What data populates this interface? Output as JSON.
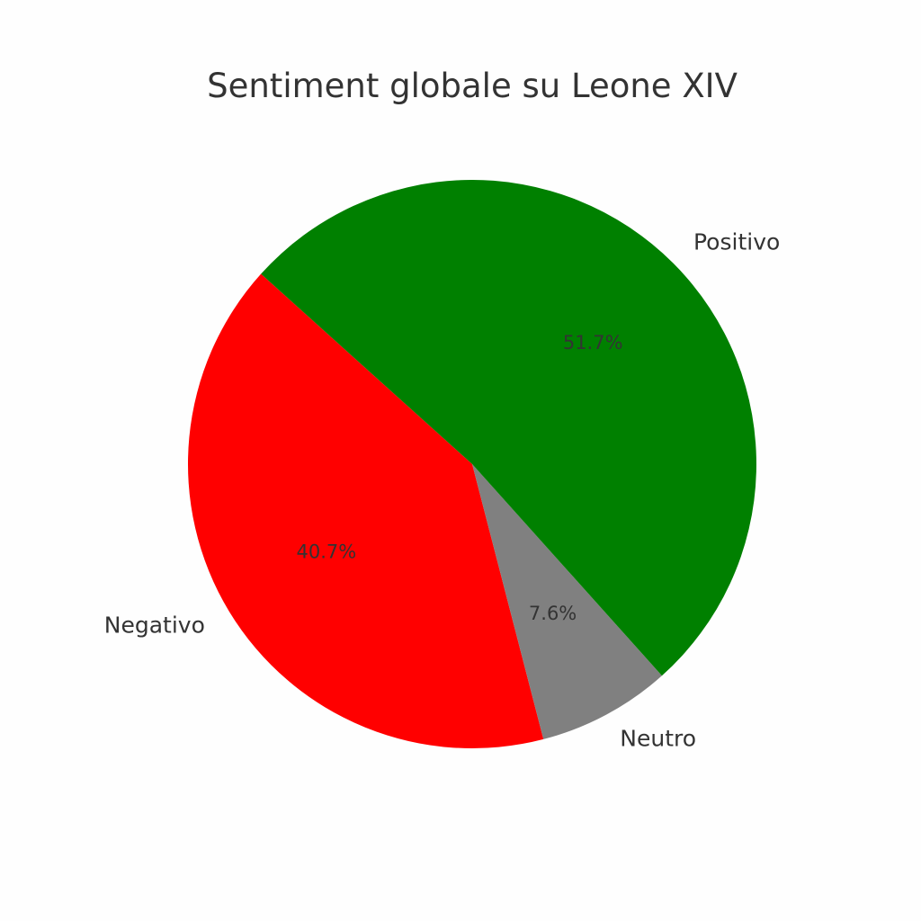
{
  "chart_data": {
    "type": "pie",
    "title": "Sentiment globale su Leone XIV",
    "slices": [
      {
        "label": "Negativo",
        "value": 40.7,
        "pct_label": "40.7%",
        "color": "#ff0000"
      },
      {
        "label": "Neutro",
        "value": 7.6,
        "pct_label": "7.6%",
        "color": "#808080"
      },
      {
        "label": "Positivo",
        "value": 51.7,
        "pct_label": "51.7%",
        "color": "#008000"
      }
    ]
  }
}
